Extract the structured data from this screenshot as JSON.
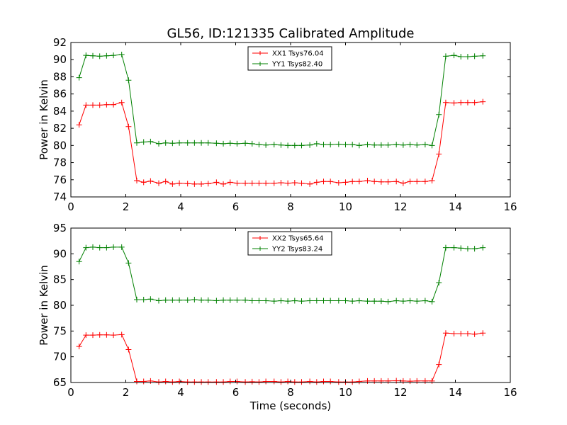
{
  "figure": {
    "title": "GL56, ID:121335 Calibrated Amplitude",
    "xlabel": "Time (seconds)"
  },
  "colors": {
    "red": "#ff0000",
    "green": "#008000"
  },
  "chart_data": [
    {
      "type": "line",
      "ylabel": "Power in Kelvin",
      "xlim": [
        0,
        16
      ],
      "ylim": [
        74,
        92
      ],
      "xticks": [
        "0",
        "2",
        "4",
        "6",
        "8",
        "10",
        "12",
        "14",
        "16"
      ],
      "yticks": [
        "74",
        "76",
        "78",
        "80",
        "82",
        "84",
        "86",
        "88",
        "90",
        "92"
      ],
      "legend_position": "top-center",
      "x": [
        0.3,
        0.55,
        0.8,
        1.05,
        1.3,
        1.55,
        1.85,
        2.1,
        2.4,
        2.65,
        2.9,
        3.2,
        3.45,
        3.7,
        3.95,
        4.25,
        4.5,
        4.75,
        5.0,
        5.3,
        5.55,
        5.8,
        6.05,
        6.35,
        6.6,
        6.85,
        7.1,
        7.4,
        7.65,
        7.9,
        8.15,
        8.4,
        8.7,
        8.95,
        9.2,
        9.45,
        9.75,
        10.0,
        10.25,
        10.5,
        10.8,
        11.05,
        11.3,
        11.55,
        11.85,
        12.1,
        12.35,
        12.6,
        12.9,
        13.15,
        13.4,
        13.65,
        13.95,
        14.2,
        14.45,
        14.7,
        15.0
      ],
      "series": [
        {
          "name": "XX1 Tsys76.04",
          "color": "#ff0000",
          "values": [
            82.4,
            84.7,
            84.7,
            84.7,
            84.75,
            84.75,
            85.0,
            82.2,
            75.9,
            75.7,
            75.85,
            75.6,
            75.8,
            75.5,
            75.6,
            75.55,
            75.5,
            75.5,
            75.55,
            75.7,
            75.5,
            75.7,
            75.6,
            75.6,
            75.6,
            75.6,
            75.6,
            75.6,
            75.65,
            75.6,
            75.65,
            75.6,
            75.5,
            75.7,
            75.8,
            75.8,
            75.65,
            75.7,
            75.8,
            75.8,
            75.9,
            75.8,
            75.75,
            75.75,
            75.8,
            75.6,
            75.8,
            75.8,
            75.8,
            75.9,
            79.0,
            85.0,
            84.95,
            85.0,
            85.0,
            85.0,
            85.1
          ]
        },
        {
          "name": "YY1 Tsys82.40",
          "color": "#008000",
          "values": [
            87.9,
            90.5,
            90.45,
            90.4,
            90.45,
            90.5,
            90.6,
            87.6,
            80.3,
            80.4,
            80.45,
            80.2,
            80.3,
            80.25,
            80.3,
            80.3,
            80.3,
            80.3,
            80.3,
            80.25,
            80.2,
            80.25,
            80.2,
            80.25,
            80.2,
            80.1,
            80.05,
            80.1,
            80.05,
            80.0,
            80.0,
            80.0,
            80.05,
            80.2,
            80.1,
            80.1,
            80.15,
            80.1,
            80.1,
            80.0,
            80.1,
            80.05,
            80.05,
            80.05,
            80.1,
            80.05,
            80.1,
            80.05,
            80.1,
            80.0,
            83.6,
            90.4,
            90.5,
            90.35,
            90.35,
            90.4,
            90.45
          ]
        }
      ]
    },
    {
      "type": "line",
      "ylabel": "Power in Kelvin",
      "xlim": [
        0,
        16
      ],
      "ylim": [
        65,
        95
      ],
      "xticks": [
        "0",
        "2",
        "4",
        "6",
        "8",
        "10",
        "12",
        "14",
        "16"
      ],
      "yticks": [
        "65",
        "70",
        "75",
        "80",
        "85",
        "90",
        "95"
      ],
      "legend_position": "top-center",
      "x": [
        0.3,
        0.55,
        0.8,
        1.05,
        1.3,
        1.55,
        1.85,
        2.1,
        2.4,
        2.65,
        2.9,
        3.2,
        3.45,
        3.7,
        3.95,
        4.25,
        4.5,
        4.75,
        5.0,
        5.3,
        5.55,
        5.8,
        6.05,
        6.35,
        6.6,
        6.85,
        7.1,
        7.4,
        7.65,
        7.9,
        8.15,
        8.4,
        8.7,
        8.95,
        9.2,
        9.45,
        9.75,
        10.0,
        10.25,
        10.5,
        10.8,
        11.05,
        11.3,
        11.55,
        11.85,
        12.1,
        12.35,
        12.6,
        12.9,
        13.15,
        13.4,
        13.65,
        13.95,
        14.2,
        14.45,
        14.7,
        15.0
      ],
      "series": [
        {
          "name": "XX2 Tsys65.64",
          "color": "#ff0000",
          "values": [
            72.0,
            74.2,
            74.2,
            74.25,
            74.25,
            74.2,
            74.3,
            71.4,
            65.2,
            65.2,
            65.3,
            65.1,
            65.2,
            65.1,
            65.2,
            65.1,
            65.1,
            65.1,
            65.1,
            65.1,
            65.1,
            65.2,
            65.2,
            65.1,
            65.15,
            65.1,
            65.2,
            65.2,
            65.1,
            65.2,
            65.1,
            65.1,
            65.2,
            65.1,
            65.2,
            65.2,
            65.1,
            65.1,
            65.1,
            65.2,
            65.3,
            65.3,
            65.3,
            65.3,
            65.35,
            65.3,
            65.25,
            65.3,
            65.3,
            65.3,
            68.5,
            74.6,
            74.5,
            74.5,
            74.5,
            74.4,
            74.6
          ]
        },
        {
          "name": "YY2 Tsys83.24",
          "color": "#008000",
          "values": [
            88.5,
            91.2,
            91.3,
            91.2,
            91.2,
            91.3,
            91.3,
            88.2,
            81.1,
            81.1,
            81.2,
            80.9,
            81.0,
            81.0,
            81.0,
            81.0,
            81.1,
            81.0,
            81.0,
            80.9,
            81.0,
            81.0,
            81.0,
            81.0,
            80.9,
            80.9,
            80.9,
            80.8,
            80.9,
            80.8,
            80.9,
            80.8,
            80.9,
            80.9,
            80.9,
            80.9,
            80.9,
            80.9,
            80.8,
            80.9,
            80.8,
            80.8,
            80.8,
            80.7,
            80.9,
            80.8,
            80.9,
            80.8,
            80.9,
            80.7,
            84.4,
            91.2,
            91.2,
            91.1,
            91.0,
            91.0,
            91.2
          ]
        }
      ]
    }
  ]
}
